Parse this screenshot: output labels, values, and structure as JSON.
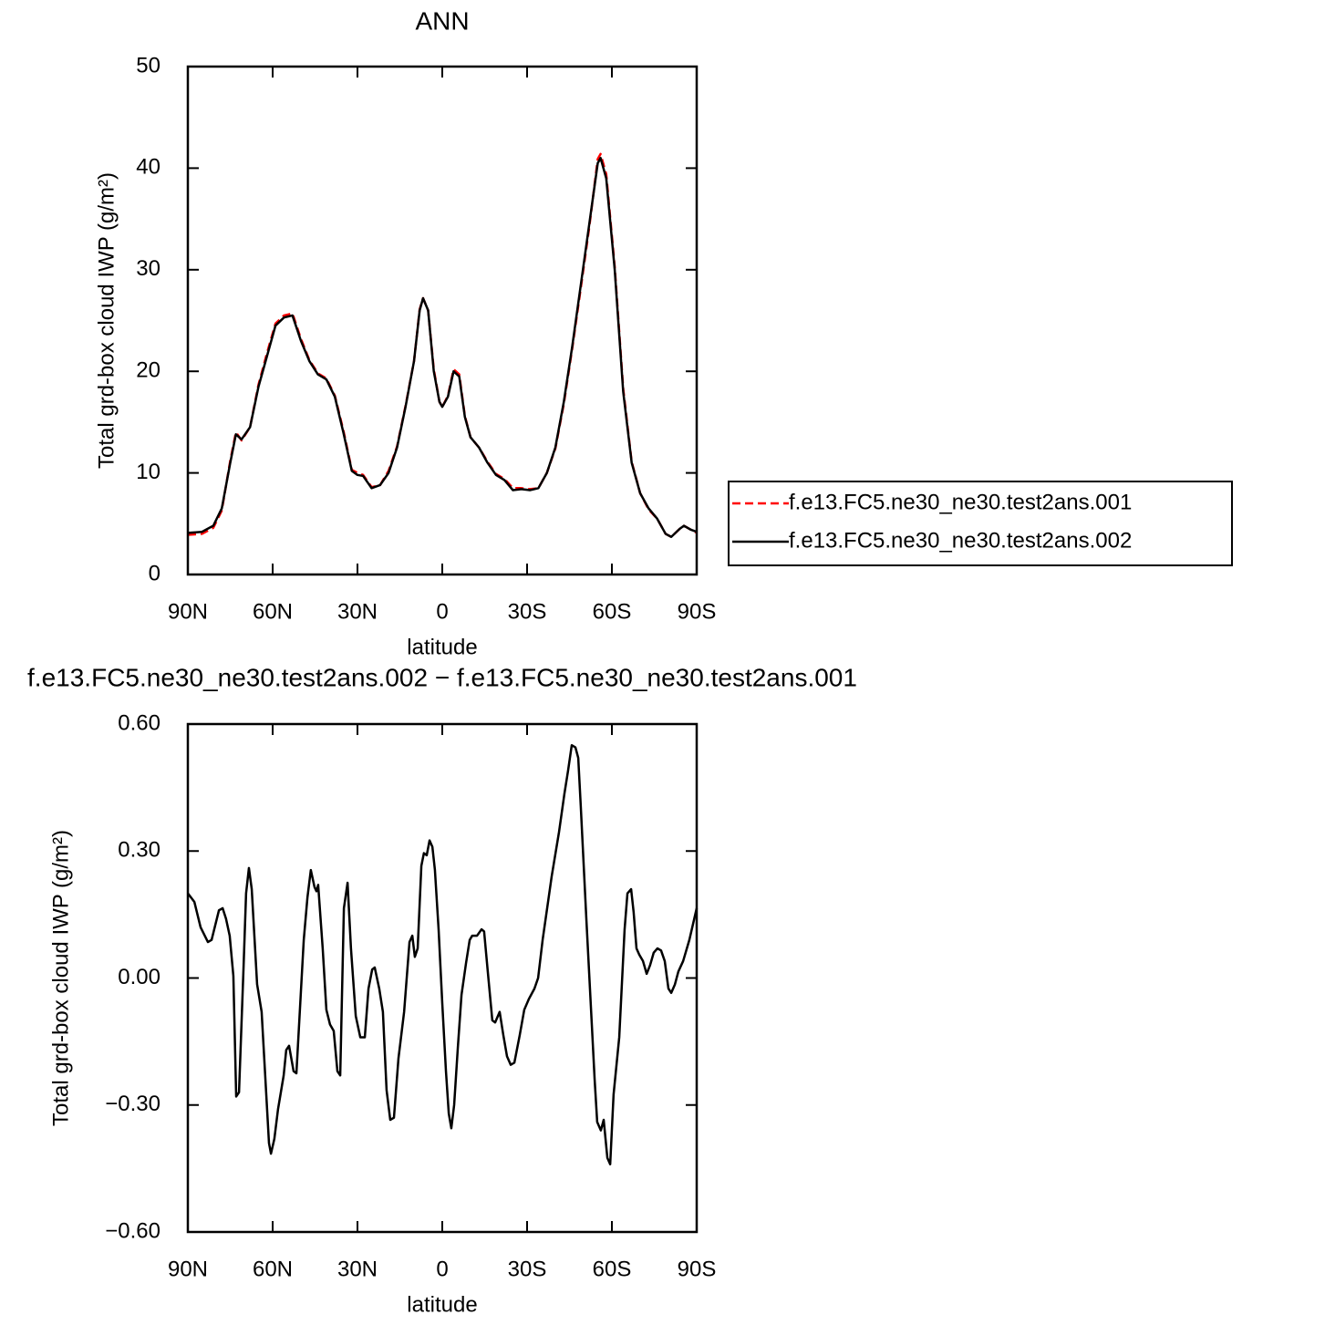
{
  "chart_data": [
    {
      "type": "line",
      "title": "ANN",
      "xlabel": "latitude",
      "ylabel": "Total grd-box cloud IWP (g/m²)",
      "xlim": [
        90,
        -90
      ],
      "xticks": [
        {
          "value": 90,
          "label": "90N"
        },
        {
          "value": 60,
          "label": "60N"
        },
        {
          "value": 30,
          "label": "30N"
        },
        0,
        {
          "value": -30,
          "label": "30S"
        },
        {
          "value": -60,
          "label": "60S"
        },
        {
          "value": -90,
          "label": "90S"
        }
      ],
      "ylim": [
        0,
        50
      ],
      "yticks": [
        0,
        10,
        20,
        30,
        40,
        50
      ],
      "legend": "right",
      "x": [
        90,
        85,
        81,
        78,
        75,
        73,
        71,
        68,
        65,
        62,
        59,
        56,
        53,
        50,
        47,
        44,
        41,
        38,
        35,
        32,
        30,
        28,
        25,
        22,
        19,
        16,
        13,
        10,
        8,
        6.8,
        5,
        3,
        1,
        0,
        -2,
        -4,
        -6,
        -8,
        -10,
        -13,
        -16,
        -19,
        -22,
        -25,
        -28,
        -31,
        -34,
        -37,
        -40,
        -43,
        -46,
        -49,
        -52,
        -55,
        -56,
        -58,
        -61,
        -64,
        -67,
        -70,
        -73,
        -76,
        -79,
        -81,
        -84,
        -85.5,
        -88,
        -90
      ],
      "series": [
        {
          "name": "f.e13.FC5.ne30_ne30.test2ans.001",
          "color": "#ff0000",
          "dashed": true,
          "values": [
            3.9,
            4.0,
            4.6,
            6.3,
            11.2,
            14.0,
            13.2,
            14.5,
            18.7,
            21.8,
            24.7,
            25.5,
            25.7,
            23.2,
            21.1,
            19.8,
            19.3,
            17.6,
            14.2,
            10.3,
            10.0,
            9.8,
            8.6,
            8.8,
            10.2,
            12.6,
            16.6,
            21.0,
            26.1,
            27.2,
            26.0,
            20.2,
            17.0,
            16.5,
            17.6,
            20.2,
            19.7,
            15.6,
            13.5,
            12.5,
            11.1,
            9.9,
            9.4,
            8.5,
            8.5,
            8.4,
            8.5,
            10.0,
            12.4,
            16.8,
            22.3,
            28.2,
            34.2,
            40.9,
            41.4,
            39.4,
            30.3,
            18.3,
            11.1,
            8.0,
            6.4,
            5.5,
            4.0,
            3.7,
            4.5,
            4.8,
            4.4,
            4.1
          ]
        },
        {
          "name": "f.e13.FC5.ne30_ne30.test2ans.002",
          "color": "#000000",
          "dashed": false,
          "values": [
            4.1,
            4.2,
            4.8,
            6.5,
            11.0,
            13.8,
            13.3,
            14.5,
            18.5,
            21.5,
            24.5,
            25.3,
            25.5,
            23.0,
            21.0,
            19.7,
            19.2,
            17.5,
            14.0,
            10.2,
            9.8,
            9.7,
            8.5,
            8.8,
            10.0,
            12.5,
            16.5,
            21.0,
            26.0,
            27.2,
            26.0,
            20.0,
            17.0,
            16.5,
            17.5,
            20.0,
            19.5,
            15.5,
            13.5,
            12.5,
            11.0,
            9.8,
            9.3,
            8.3,
            8.4,
            8.3,
            8.5,
            10.0,
            12.5,
            17.0,
            22.5,
            28.5,
            34.5,
            40.5,
            41.0,
            39.0,
            30.0,
            18.0,
            11.0,
            8.0,
            6.5,
            5.5,
            4.0,
            3.7,
            4.5,
            4.8,
            4.4,
            4.2
          ]
        }
      ]
    },
    {
      "type": "line",
      "title": "f.e13.FC5.ne30_ne30.test2ans.002 − f.e13.FC5.ne30_ne30.test2ans.001",
      "xlabel": "latitude",
      "ylabel": "Total grd-box cloud IWP (g/m²)",
      "xlim": [
        90,
        -90
      ],
      "xticks": [
        {
          "value": 90,
          "label": "90N"
        },
        {
          "value": 60,
          "label": "60N"
        },
        {
          "value": 30,
          "label": "30N"
        },
        0,
        {
          "value": -30,
          "label": "30S"
        },
        {
          "value": -60,
          "label": "60S"
        },
        {
          "value": -90,
          "label": "90S"
        }
      ],
      "ylim": [
        -0.6,
        0.6
      ],
      "yticks": [
        {
          "value": -0.6,
          "label": "−0.60"
        },
        {
          "value": -0.3,
          "label": "−0.30"
        },
        {
          "value": 0,
          "label": "0.00"
        },
        {
          "value": 0.3,
          "label": "0.30"
        },
        {
          "value": 0.6,
          "label": "0.60"
        }
      ],
      "x": [
        90,
        87.7,
        85.5,
        82.9,
        81.6,
        79,
        77.7,
        76.5,
        75.2,
        73.9,
        72.9,
        71.9,
        70.3,
        69.4,
        68.4,
        67.4,
        65.5,
        63.9,
        61.3,
        60.6,
        59.4,
        58.1,
        56.1,
        55.2,
        54.2,
        52.6,
        51.6,
        49.0,
        47.7,
        46.5,
        45.2,
        44.5,
        43.9,
        42.3,
        41.0,
        39.7,
        38.4,
        37.1,
        36.1,
        34.8,
        33.5,
        32.3,
        30.6,
        29.0,
        27.4,
        26.1,
        24.8,
        23.9,
        22.3,
        21.0,
        19.7,
        18.4,
        17.1,
        15.5,
        13.5,
        11.6,
        10.6,
        9.7,
        8.7,
        7.4,
        6.5,
        5.5,
        4.5,
        3.5,
        2.6,
        1.3,
        0,
        -1.3,
        -2.3,
        -3.2,
        -4.2,
        -5.5,
        -6.8,
        -8.4,
        -9.7,
        -10.6,
        -12.3,
        -13.9,
        -14.8,
        -16.1,
        -17.7,
        -18.7,
        -20.3,
        -21.6,
        -22.9,
        -24.2,
        -25.5,
        -27.4,
        -29.0,
        -30.6,
        -32.6,
        -33.9,
        -35.5,
        -37.1,
        -38.7,
        -41.3,
        -43.2,
        -44.5,
        -45.8,
        -47.1,
        -48.1,
        -49.0,
        -51.0,
        -52.9,
        -53.9,
        -54.8,
        -56.1,
        -57.1,
        -58.4,
        -59.4,
        -60.6,
        -62.6,
        -64.5,
        -65.5,
        -66.8,
        -67.7,
        -68.7,
        -69.7,
        -71.0,
        -72.3,
        -73.5,
        -74.8,
        -76.1,
        -77.4,
        -78.7,
        -80.0,
        -81.0,
        -82.3,
        -83.5,
        -85.2,
        -87.4,
        -90
      ],
      "series": [
        {
          "name": "f.e13.FC5.ne30_ne30.test2ans.002 − f.e13.FC5.ne30_ne30.test2ans.001",
          "color": "#000000",
          "dashed": false,
          "values": [
            0.2,
            0.18,
            0.12,
            0.085,
            0.09,
            0.16,
            0.165,
            0.14,
            0.1,
            0.005,
            -0.28,
            -0.27,
            0.025,
            0.2,
            0.26,
            0.21,
            -0.015,
            -0.08,
            -0.39,
            -0.415,
            -0.38,
            -0.31,
            -0.23,
            -0.17,
            -0.16,
            -0.22,
            -0.225,
            0.09,
            0.19,
            0.255,
            0.215,
            0.205,
            0.22,
            0.07,
            -0.075,
            -0.11,
            -0.125,
            -0.22,
            -0.23,
            0.165,
            0.225,
            0.07,
            -0.09,
            -0.14,
            -0.14,
            -0.025,
            0.02,
            0.025,
            -0.025,
            -0.08,
            -0.265,
            -0.335,
            -0.33,
            -0.19,
            -0.08,
            0.085,
            0.1,
            0.05,
            0.07,
            0.265,
            0.295,
            0.29,
            0.325,
            0.31,
            0.255,
            0.115,
            -0.06,
            -0.22,
            -0.32,
            -0.355,
            -0.3,
            -0.165,
            -0.04,
            0.035,
            0.09,
            0.1,
            0.1,
            0.115,
            0.11,
            0.015,
            -0.1,
            -0.105,
            -0.08,
            -0.135,
            -0.185,
            -0.205,
            -0.2,
            -0.135,
            -0.075,
            -0.05,
            -0.025,
            0.0,
            0.09,
            0.165,
            0.24,
            0.345,
            0.435,
            0.49,
            0.55,
            0.545,
            0.52,
            0.405,
            0.135,
            -0.11,
            -0.24,
            -0.34,
            -0.36,
            -0.335,
            -0.425,
            -0.44,
            -0.275,
            -0.14,
            0.115,
            0.2,
            0.21,
            0.155,
            0.07,
            0.055,
            0.04,
            0.01,
            0.03,
            0.06,
            0.07,
            0.065,
            0.04,
            -0.025,
            -0.035,
            -0.015,
            0.015,
            0.04,
            0.09,
            0.165
          ]
        }
      ]
    }
  ]
}
